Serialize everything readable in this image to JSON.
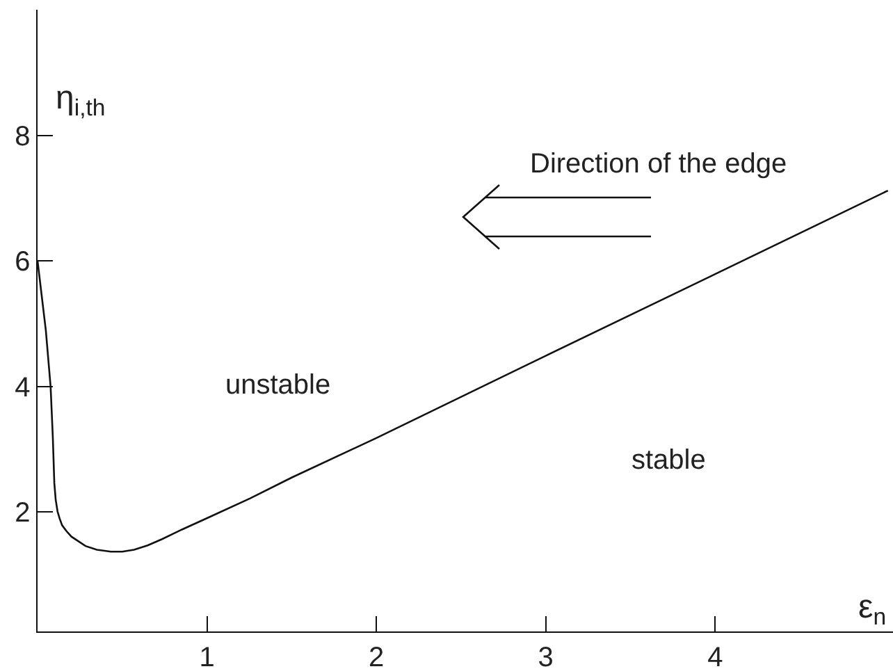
{
  "chart_data": {
    "type": "line",
    "xlabel": "ε$_{n}$",
    "ylabel": "η$_{i,th}$",
    "annotations": [
      "unstable",
      "stable",
      "Direction of the edge"
    ],
    "x": [
      0,
      0.049,
      0.077,
      0.09,
      0.099,
      0.107,
      0.118,
      0.13,
      0.145,
      0.17,
      0.2,
      0.283,
      0.35,
      0.433,
      0.5,
      0.57,
      0.65,
      0.735,
      0.85,
      0.981,
      1.255,
      1.5,
      2.0,
      3.0,
      4.0,
      5.02
    ],
    "series": [
      {
        "color": "#111111",
        "values": [
          6.0,
          4.89,
          4.0,
          3.2,
          2.46,
          2.2,
          2.01,
          1.9,
          1.79,
          1.7,
          1.61,
          1.46,
          1.4,
          1.37,
          1.37,
          1.4,
          1.47,
          1.57,
          1.72,
          1.88,
          2.22,
          2.55,
          3.18,
          4.49,
          5.79,
          7.12
        ]
      }
    ],
    "xlim": [
      0,
      5.05
    ],
    "ylim": [
      0.1,
      10
    ],
    "xticks": [
      1,
      2,
      3,
      4
    ],
    "yticks": [
      2,
      4,
      6,
      8
    ],
    "line_style": "solid"
  }
}
